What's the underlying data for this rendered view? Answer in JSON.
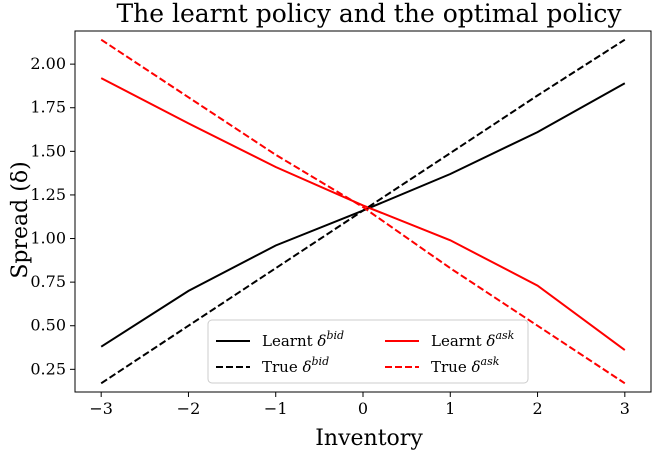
{
  "chart_data": {
    "type": "line",
    "title": "The learnt policy and the optimal policy",
    "xlabel": "Inventory",
    "ylabel": "Spread (δ)",
    "xlim": [
      -3.3,
      3.3
    ],
    "ylim": [
      0.12,
      2.19
    ],
    "xticks": [
      "−3",
      "−2",
      "−1",
      "0",
      "1",
      "2",
      "3"
    ],
    "yticks": [
      "0.25",
      "0.50",
      "0.75",
      "1.00",
      "1.25",
      "1.50",
      "1.75",
      "2.00"
    ],
    "grid": false,
    "legend_position": "lower-center",
    "x": [
      -3,
      -2,
      -1,
      0,
      1,
      2,
      3
    ],
    "series": [
      {
        "name": "Learnt δbid",
        "label_main": "Learnt δ",
        "label_sup": "bid",
        "color": "#000000",
        "dash": "solid",
        "values": [
          0.38,
          0.7,
          0.96,
          1.16,
          1.37,
          1.61,
          1.89
        ]
      },
      {
        "name": "Learnt δask",
        "label_main": "Learnt δ",
        "label_sup": "ask",
        "color": "#ff0000",
        "dash": "solid",
        "values": [
          1.92,
          1.66,
          1.41,
          1.19,
          0.99,
          0.73,
          0.36
        ]
      },
      {
        "name": "True δbid",
        "label_main": "True δ",
        "label_sup": "bid",
        "color": "#000000",
        "dash": "dashed",
        "values": [
          0.17,
          0.5,
          0.83,
          1.16,
          1.49,
          1.82,
          2.14
        ]
      },
      {
        "name": "True δask",
        "label_main": "True δ",
        "label_sup": "ask",
        "color": "#ff0000",
        "dash": "dashed",
        "values": [
          2.14,
          1.81,
          1.48,
          1.18,
          0.83,
          0.5,
          0.17
        ]
      }
    ]
  }
}
